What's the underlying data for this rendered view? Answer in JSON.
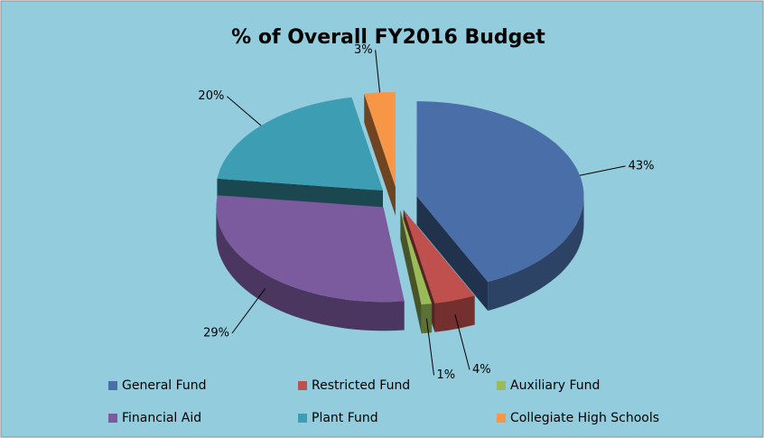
{
  "chart_data": {
    "type": "pie3d",
    "title": "% of Overall FY2016 Budget",
    "categories": [
      "General Fund",
      "Restricted Fund",
      "Auxiliary Fund",
      "Financial Aid",
      "Plant Fund",
      "Collegiate High Schools"
    ],
    "values": [
      43,
      4,
      1,
      29,
      20,
      3
    ],
    "value_labels": [
      "43%",
      "4%",
      "1%",
      "29%",
      "20%",
      "3%"
    ],
    "colors": [
      "#4a6fa8",
      "#c0504d",
      "#9bbb59",
      "#7b5a9e",
      "#3d9db3",
      "#f79646"
    ],
    "exploded": true
  }
}
